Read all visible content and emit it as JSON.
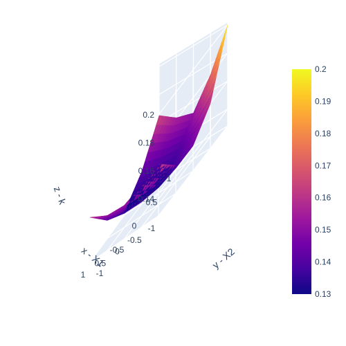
{
  "chart_data": {
    "type": "surface",
    "title": "",
    "x": [
      -1,
      -0.5,
      0,
      0.5,
      1
    ],
    "y": [
      -1,
      -0.5,
      0,
      0.5,
      1
    ],
    "z_rows_by_x": [
      [
        0.165,
        0.148,
        0.146,
        0.16,
        0.2
      ],
      [
        0.158,
        0.142,
        0.138,
        0.148,
        0.172
      ],
      [
        0.152,
        0.138,
        0.132,
        0.138,
        0.152
      ],
      [
        0.153,
        0.138,
        0.131,
        0.139,
        0.156
      ],
      [
        0.16,
        0.141,
        0.13,
        0.142,
        0.165
      ]
    ],
    "scene": {
      "xaxis": {
        "title": "x - X1",
        "ticks": [
          "-1",
          "-0.5",
          "0",
          "0.5",
          "1"
        ],
        "range": [
          -1,
          1
        ]
      },
      "yaxis": {
        "title": "y - X2",
        "ticks": [
          "-1",
          "-0.5",
          "0",
          "0.5",
          "1"
        ],
        "range": [
          -1,
          1
        ]
      },
      "zaxis": {
        "title": "z - k",
        "ticks": [
          "0.14",
          "0.16",
          "0.18",
          "0.2"
        ],
        "range": [
          0.128,
          0.202
        ]
      }
    },
    "colorbar": {
      "range": [
        0.13,
        0.2
      ],
      "ticks": [
        "0.13",
        "0.14",
        "0.15",
        "0.16",
        "0.17",
        "0.18",
        "0.19",
        "0.2"
      ],
      "colorscale": [
        "#0d0887",
        "#46039f",
        "#7201a8",
        "#9c179e",
        "#bd3786",
        "#d8576b",
        "#ed7953",
        "#fb9f3a",
        "#fdca26",
        "#f0f921"
      ]
    },
    "grid": true
  }
}
